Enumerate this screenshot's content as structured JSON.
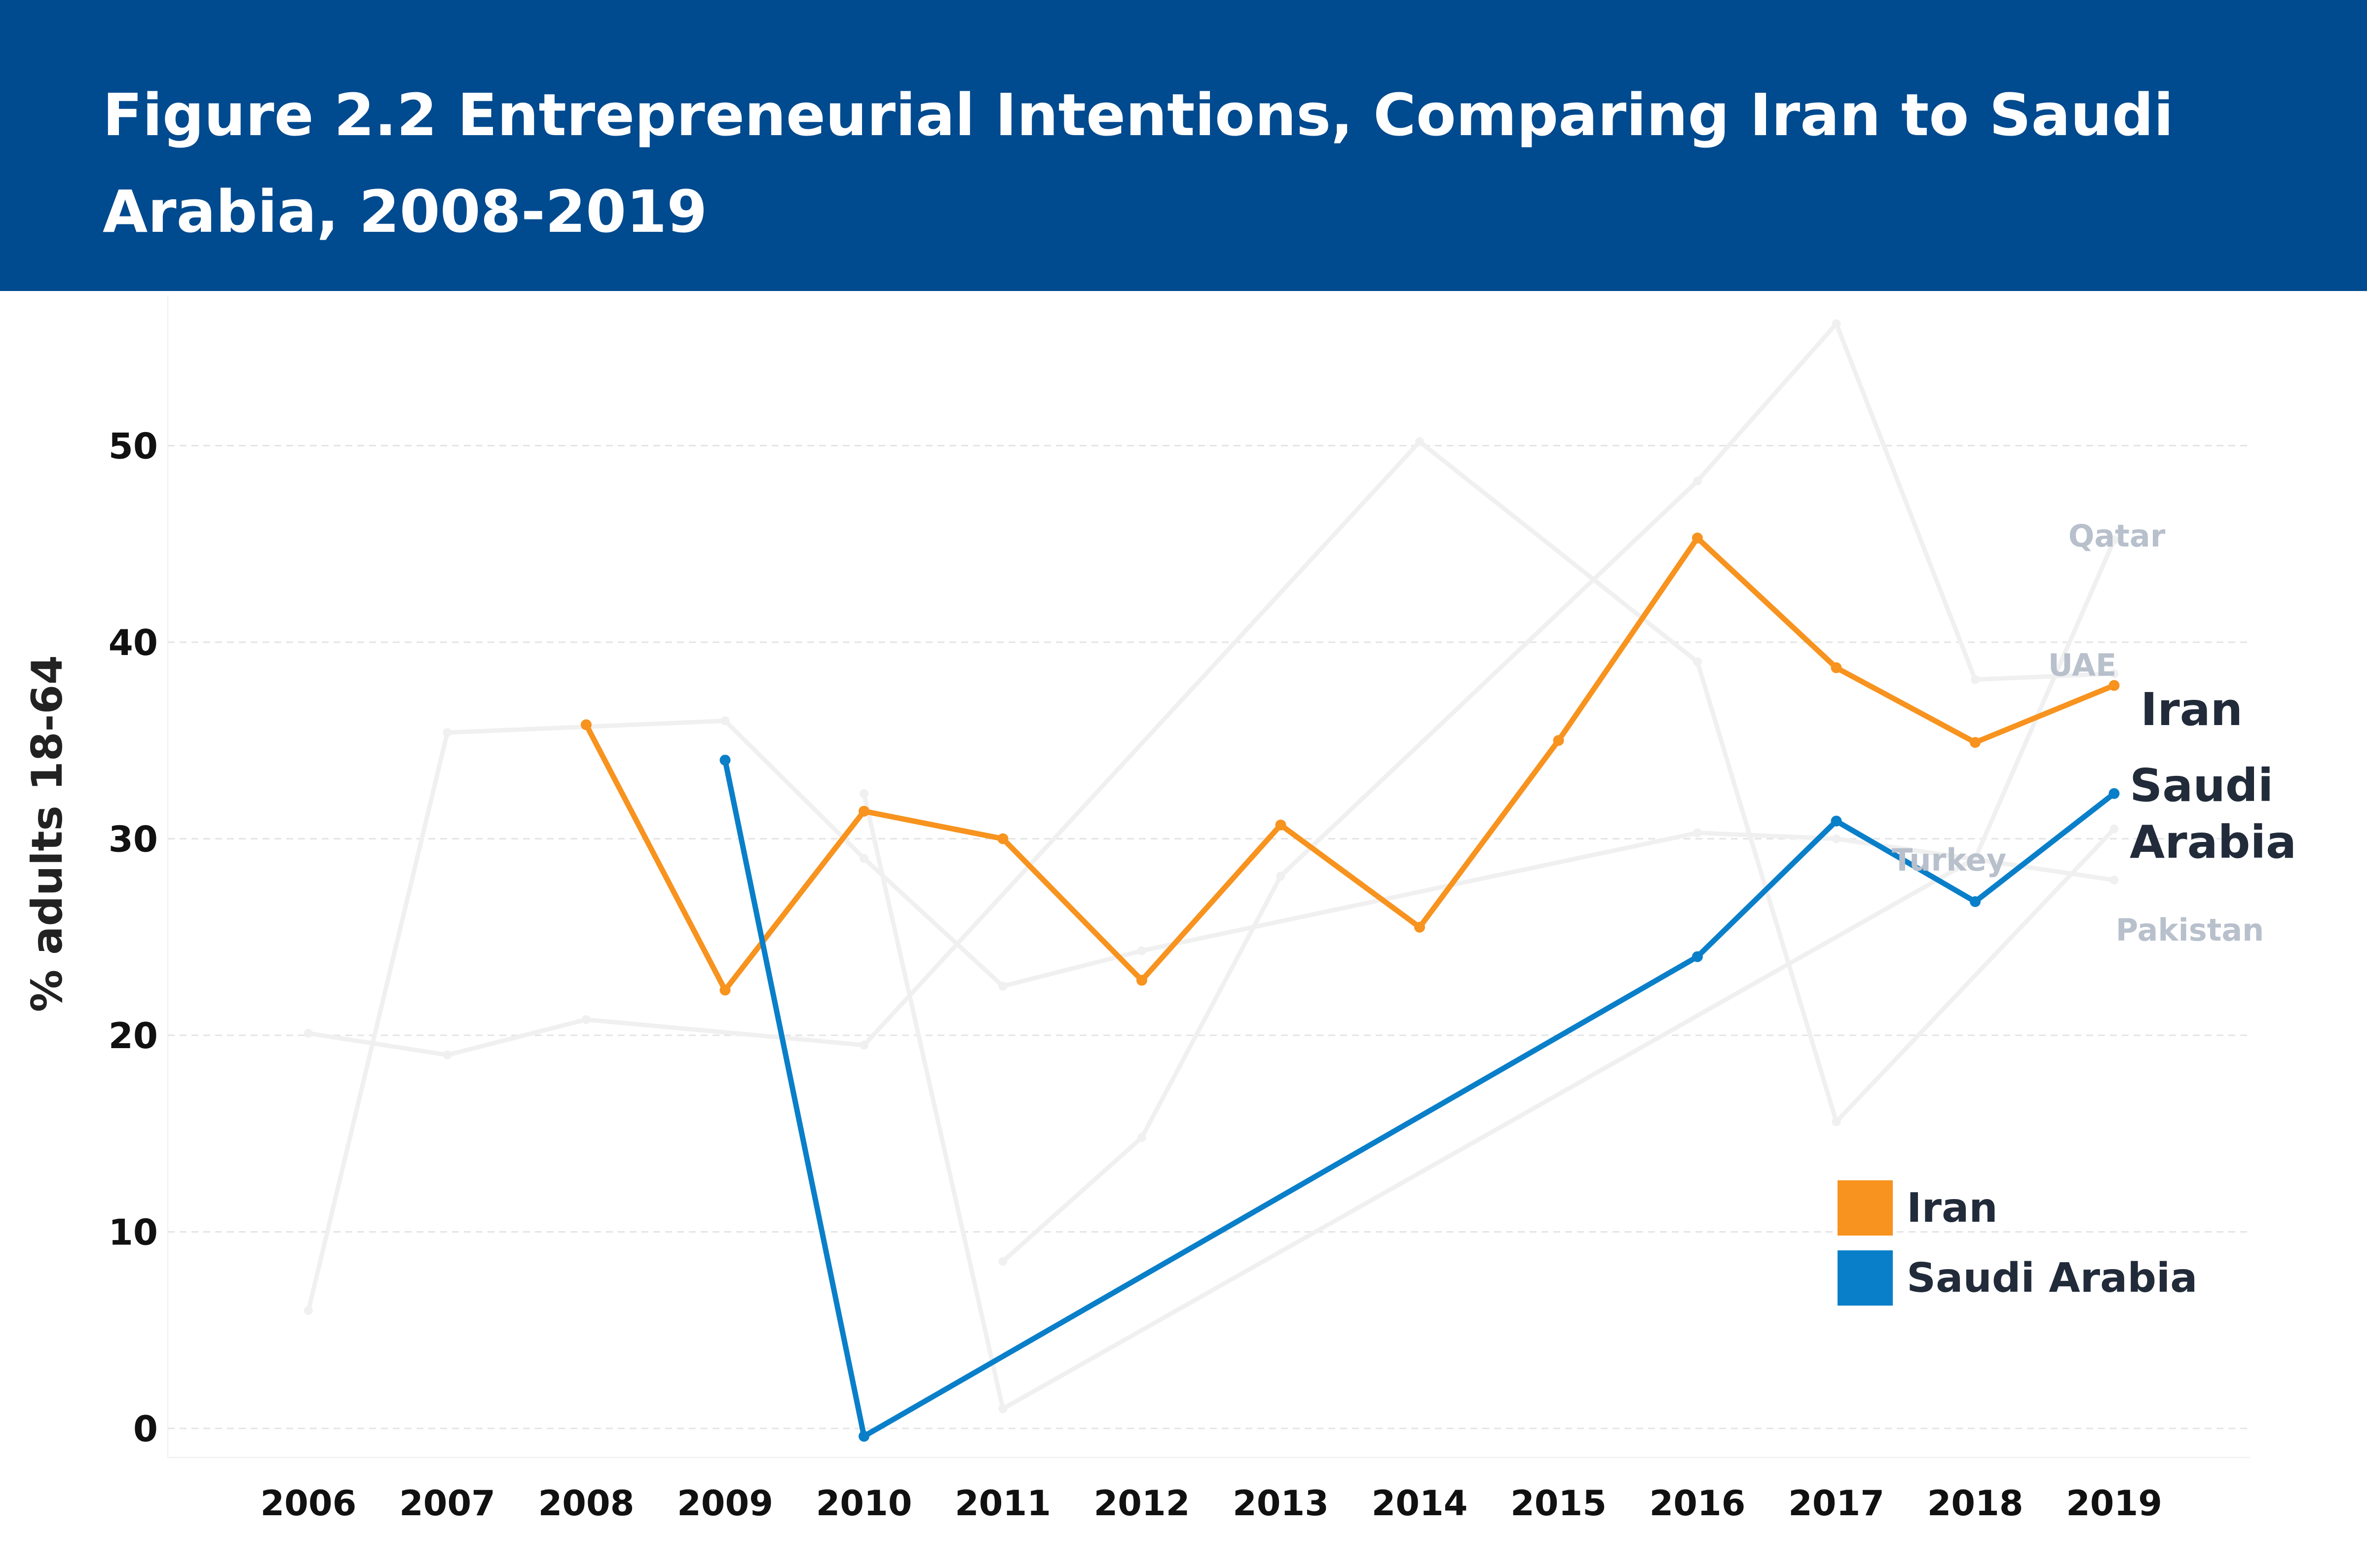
{
  "header": {
    "title": "Figure 2.2 Entrepreneurial Intentions, Comparing Iran to Saudi Arabia, 2008-2019"
  },
  "colors": {
    "header_bg": "#004a8f",
    "iran": "#f7931e",
    "saudi_arabia": "#0a7fc9",
    "context": "#f0f0f0",
    "context_label": "#b8c0cc"
  },
  "chart_data": {
    "type": "line",
    "title": "Figure 2.2 Entrepreneurial Intentions, Comparing Iran to Saudi Arabia, 2008-2019",
    "xlabel": "",
    "ylabel": "% adults 18-64",
    "x": [
      2006,
      2007,
      2008,
      2009,
      2010,
      2011,
      2012,
      2013,
      2014,
      2015,
      2016,
      2017,
      2018,
      2019
    ],
    "ylim": [
      -1,
      56
    ],
    "yticks": [
      0,
      10,
      20,
      30,
      40,
      50
    ],
    "grid": true,
    "legend_position": "bottom-right",
    "series": [
      {
        "name": "Iran",
        "color": "#f7931e",
        "highlight": true,
        "points": [
          [
            2008,
            35.8
          ],
          [
            2009,
            22.3
          ],
          [
            2010,
            31.4
          ],
          [
            2011,
            30.0
          ],
          [
            2012,
            22.8
          ],
          [
            2013,
            30.7
          ],
          [
            2014,
            25.5
          ],
          [
            2015,
            35.0
          ],
          [
            2016,
            45.3
          ],
          [
            2017,
            38.7
          ],
          [
            2018,
            34.9
          ],
          [
            2019,
            37.8
          ]
        ]
      },
      {
        "name": "Saudi Arabia",
        "color": "#0a7fc9",
        "highlight": true,
        "points": [
          [
            2009,
            34.0
          ],
          [
            2010,
            -0.4
          ],
          [
            2016,
            24.0
          ],
          [
            2017,
            30.9
          ],
          [
            2018,
            26.8
          ],
          [
            2019,
            32.3
          ]
        ]
      },
      {
        "name": "Qatar",
        "color": "#f0f0f0",
        "highlight": false,
        "points": [
          [
            2010,
            32.3
          ],
          [
            2011,
            1.0
          ],
          [
            2018,
            29.0
          ],
          [
            2019,
            45.2
          ]
        ]
      },
      {
        "name": "UAE",
        "color": "#f0f0f0",
        "highlight": false,
        "points": [
          [
            2011,
            8.5
          ],
          [
            2012,
            14.8
          ],
          [
            2013,
            28.1
          ],
          [
            2016,
            48.2
          ],
          [
            2017,
            56.2
          ],
          [
            2018,
            38.1
          ],
          [
            2019,
            38.4
          ]
        ]
      },
      {
        "name": "Turkey",
        "color": "#f0f0f0",
        "highlight": false,
        "points": [
          [
            2006,
            20.1
          ],
          [
            2007,
            19.0
          ],
          [
            2008,
            20.8
          ],
          [
            2010,
            19.5
          ],
          [
            2014,
            50.2
          ],
          [
            2016,
            39.0
          ],
          [
            2017,
            15.6
          ],
          [
            2019,
            30.5
          ]
        ]
      },
      {
        "name": "Pakistan",
        "color": "#f0f0f0",
        "highlight": false,
        "points": [
          [
            2006,
            6.0
          ],
          [
            2007,
            35.4
          ],
          [
            2009,
            36.0
          ],
          [
            2010,
            29.0
          ],
          [
            2011,
            22.5
          ],
          [
            2012,
            24.3
          ],
          [
            2016,
            30.3
          ],
          [
            2017,
            30.0
          ],
          [
            2019,
            27.9
          ]
        ]
      }
    ],
    "end_labels": [
      {
        "text": "Qatar",
        "series": "Qatar"
      },
      {
        "text": "UAE",
        "series": "UAE"
      },
      {
        "text": "Iran",
        "series": "Iran"
      },
      {
        "text": "Saudi Arabia",
        "series": "Saudi Arabia"
      },
      {
        "text": "Turkey",
        "series": "Turkey"
      },
      {
        "text": "Pakistan",
        "series": "Pakistan"
      }
    ],
    "legend": [
      {
        "label": "Iran",
        "color": "#f7931e"
      },
      {
        "label": "Saudi Arabia",
        "color": "#0a7fc9"
      }
    ]
  }
}
